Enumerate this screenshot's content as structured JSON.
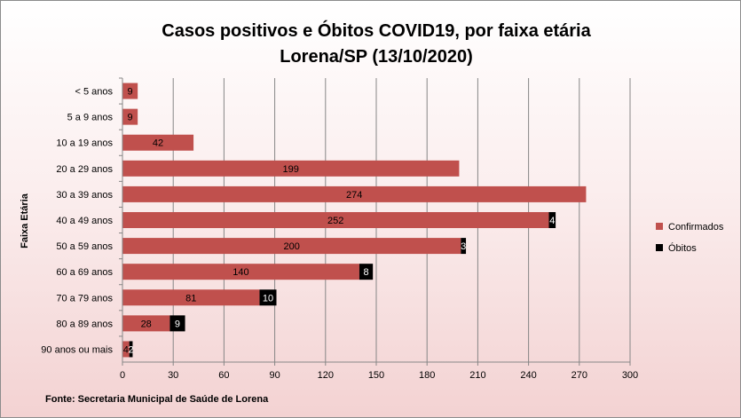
{
  "chart_data": {
    "type": "bar",
    "orientation": "horizontal",
    "stacked": true,
    "title_lines": [
      "Casos positivos e Óbitos COVID19, por faixa etária",
      "Lorena/SP (13/10/2020)"
    ],
    "ylabel": "Faixa Etária",
    "xlabel": "",
    "xlim": [
      0,
      300
    ],
    "xticks": [
      0,
      30,
      60,
      90,
      120,
      150,
      180,
      210,
      240,
      270,
      300
    ],
    "categories": [
      "< 5 anos",
      "5 a 9 anos",
      "10 a 19 anos",
      "20 a 29 anos",
      "30 a 39 anos",
      "40 a 49 anos",
      "50 a 59 anos",
      "60 a 69 anos",
      "70 a 79 anos",
      "80 a 89 anos",
      "90 anos ou mais"
    ],
    "series": [
      {
        "name": "Confirmados",
        "color": "#c0504d",
        "values": [
          9,
          9,
          42,
          199,
          274,
          252,
          200,
          140,
          81,
          28,
          4
        ]
      },
      {
        "name": "Óbitos",
        "color": "#000000",
        "values": [
          0,
          0,
          0,
          0,
          0,
          4,
          3,
          8,
          10,
          9,
          2
        ]
      }
    ],
    "legend_position": "right",
    "grid": true,
    "source": "Fonte: Secretaria Municipal  de Saúde de Lorena"
  }
}
